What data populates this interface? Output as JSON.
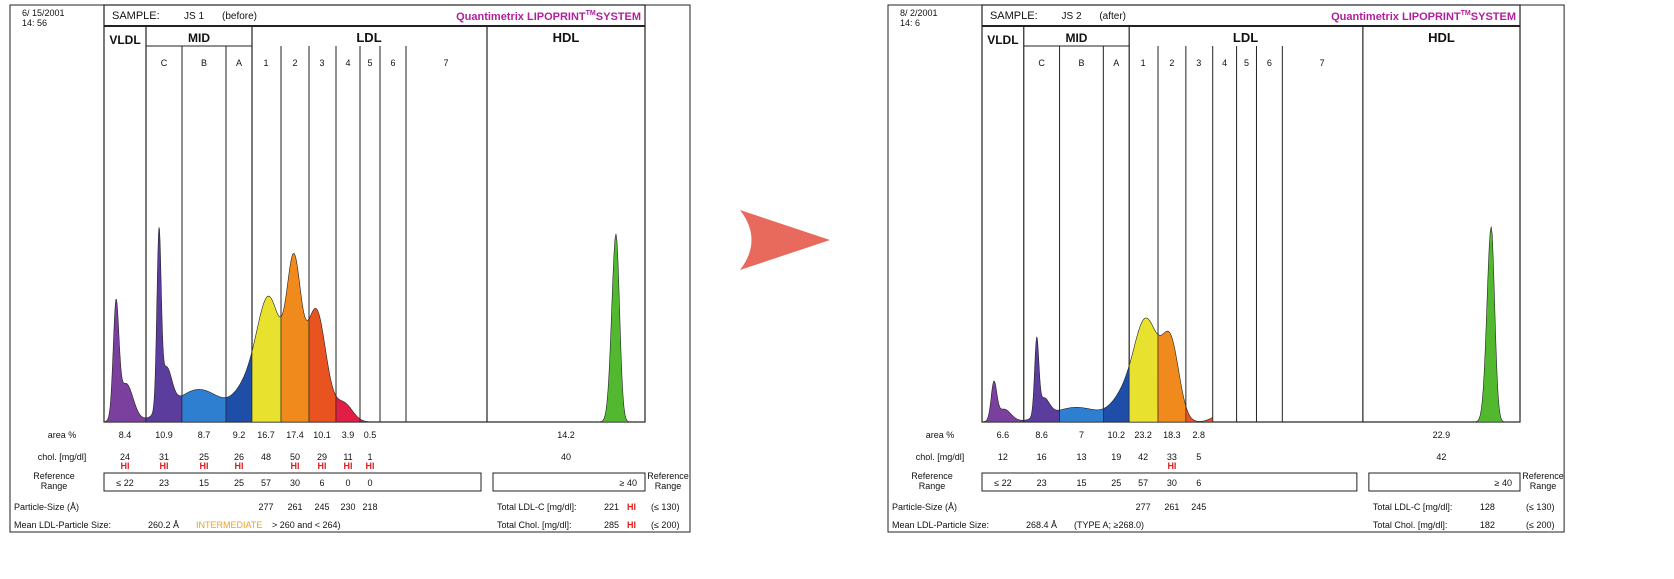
{
  "chart_data": [
    {
      "type": "area",
      "date": "6/ 15/2001",
      "time": "14: 56",
      "sample_label": "SAMPLE:",
      "sample_id": "JS 1",
      "sample_note": "(before)",
      "brand": "Quantimetrix LIPOPRINT",
      "brand_tm": "TM",
      "brand_suffix": "SYSTEM",
      "class_headers": [
        "VLDL",
        "MID",
        "LDL",
        "HDL"
      ],
      "fractions": [
        "C",
        "B",
        "A",
        "1",
        "2",
        "3",
        "4",
        "5",
        "6",
        "7"
      ],
      "series": [
        {
          "name": "area %",
          "values": [
            8.4,
            10.9,
            8.7,
            9.2,
            16.7,
            17.4,
            10.1,
            3.9,
            0.5,
            14.2
          ]
        },
        {
          "name": "chol. [mg/dl]",
          "values": [
            24,
            31,
            25,
            26,
            48,
            50,
            29,
            11,
            1,
            40
          ]
        }
      ],
      "row_labels": {
        "area": "area %",
        "chol": "chol. [mg/dl]",
        "ref": "Reference Range",
        "ref_right": "Reference Range",
        "size": "Particle-Size (Å)"
      },
      "hi_flags": [
        "HI",
        "HI",
        "HI",
        "HI",
        "",
        "HI",
        "HI",
        "HI",
        "HI"
      ],
      "reference_range": [
        "≤ 22",
        "23",
        "15",
        "25",
        "57",
        "30",
        "6",
        "0",
        "0"
      ],
      "hdl_reference": "≥ 40",
      "particle_size": [
        "277",
        "261",
        "245",
        "230",
        "218"
      ],
      "total_ldl_label": "Total LDL-C [mg/dl]:",
      "total_ldl_value": "221",
      "total_ldl_flag": "HI",
      "total_ldl_ref": "(≤ 130)",
      "total_chol_label": "Total Chol. [mg/dl]:",
      "total_chol_value": "285",
      "total_chol_flag": "HI",
      "total_chol_ref": "(≤ 200)",
      "mean_label": "Mean LDL-Particle Size:",
      "mean_value": "260.2 Å",
      "mean_type": "INTERMEDIATE",
      "mean_range": "> 260 and < 264)",
      "curve_peaks": [
        {
          "pos": 0.012,
          "height": 0.3
        },
        {
          "pos": 0.14,
          "height": 0.46
        },
        {
          "pos": 0.41,
          "height": 0.34
        },
        {
          "pos": 0.47,
          "height": 0.39
        },
        {
          "pos": 0.53,
          "height": 0.31
        }
      ],
      "hdl_peak_height": 0.52
    },
    {
      "type": "area",
      "date": "8/ 2/2001",
      "time": "14: 6",
      "sample_label": "SAMPLE:",
      "sample_id": "JS 2",
      "sample_note": "(after)",
      "brand": "Quantimetrix LIPOPRINT",
      "brand_tm": "TM",
      "brand_suffix": "SYSTEM",
      "class_headers": [
        "VLDL",
        "MID",
        "LDL",
        "HDL"
      ],
      "fractions": [
        "C",
        "B",
        "A",
        "1",
        "2",
        "3",
        "4",
        "5",
        "6",
        "7"
      ],
      "series": [
        {
          "name": "area %",
          "values": [
            6.6,
            8.6,
            7.0,
            10.2,
            23.2,
            18.3,
            2.8,
            22.9
          ]
        },
        {
          "name": "chol. [mg/dl]",
          "values": [
            12,
            16,
            13,
            19,
            42,
            33,
            5,
            42
          ]
        }
      ],
      "row_labels": {
        "area": "area %",
        "chol": "chol. [mg/dl]",
        "ref": "Reference Range",
        "ref_right": "Reference Range",
        "size": "Particle-Size (Å)"
      },
      "hi_flags": [
        "",
        "",
        "",
        "",
        "",
        "HI",
        ""
      ],
      "reference_range": [
        "≤ 22",
        "23",
        "15",
        "25",
        "57",
        "30",
        "6"
      ],
      "hdl_reference": "≥ 40",
      "particle_size": [
        "277",
        "261",
        "245"
      ],
      "total_ldl_label": "Total LDL-C [mg/dl]:",
      "total_ldl_value": "128",
      "total_ldl_flag": "",
      "total_ldl_ref": "(≤ 130)",
      "total_chol_label": "Total Chol. [mg/dl]:",
      "total_chol_value": "182",
      "total_chol_flag": "",
      "total_chol_ref": "(≤ 200)",
      "mean_label": "Mean LDL-Particle Size:",
      "mean_value": "268.4 Å",
      "mean_type": "(TYPE A; ≥268.0)",
      "mean_range": "",
      "curve_peaks": [
        {
          "pos": 0.012,
          "height": 0.1
        },
        {
          "pos": 0.14,
          "height": 0.2
        },
        {
          "pos": 0.41,
          "height": 0.28
        },
        {
          "pos": 0.47,
          "height": 0.2
        },
        {
          "pos": 0.53,
          "height": 0.0
        }
      ],
      "hdl_peak_height": 0.54
    }
  ],
  "colors": {
    "vldl": "#7b3f9e",
    "midc": "#5a3d9c",
    "midb": "#2f7fd0",
    "mida": "#1f4ea8",
    "ldl1": "#e8e22f",
    "ldl2": "#f08a1c",
    "ldl3": "#e8531f",
    "ldl4": "#e01e46",
    "ldl5": "#c01d6a",
    "hdl": "#52b830",
    "brand": "#b21e9e",
    "hi": "#e02020",
    "intermediate": "#f0a020",
    "arrow": "#e86a5c"
  },
  "transition_icon": "right-arrow-icon"
}
